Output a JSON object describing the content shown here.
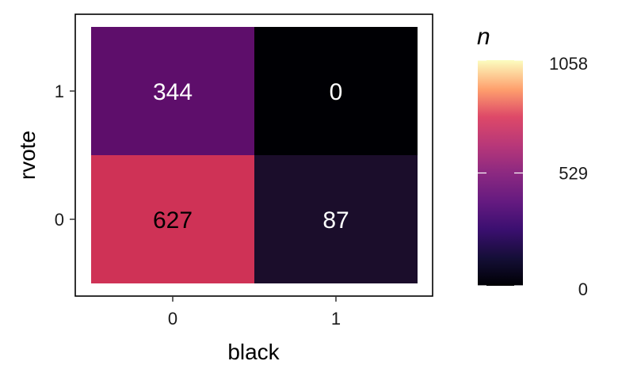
{
  "chart_data": {
    "type": "heatmap",
    "title": "",
    "xlabel": "black",
    "ylabel": "rvote",
    "x_categories": [
      "0",
      "1"
    ],
    "y_categories": [
      "0",
      "1"
    ],
    "cells": [
      {
        "x": "0",
        "y": "1",
        "value": 344,
        "label": "344",
        "color": "#5e0e6b",
        "text_color": "#ffffff"
      },
      {
        "x": "1",
        "y": "1",
        "value": 0,
        "label": "0",
        "color": "#000004",
        "text_color": "#ffffff"
      },
      {
        "x": "0",
        "y": "0",
        "value": 627,
        "label": "627",
        "color": "#cf3256",
        "text_color": "#000000"
      },
      {
        "x": "1",
        "y": "0",
        "value": 87,
        "label": "87",
        "color": "#1b0d2b",
        "text_color": "#ffffff"
      }
    ],
    "colorbar": {
      "title": "n",
      "min": 0,
      "max": 1058,
      "ticks": [
        0,
        529,
        1058
      ],
      "tick_labels": [
        "0",
        "529",
        "1058"
      ],
      "palette": "magma"
    },
    "grid": false,
    "legend_position": "right"
  }
}
